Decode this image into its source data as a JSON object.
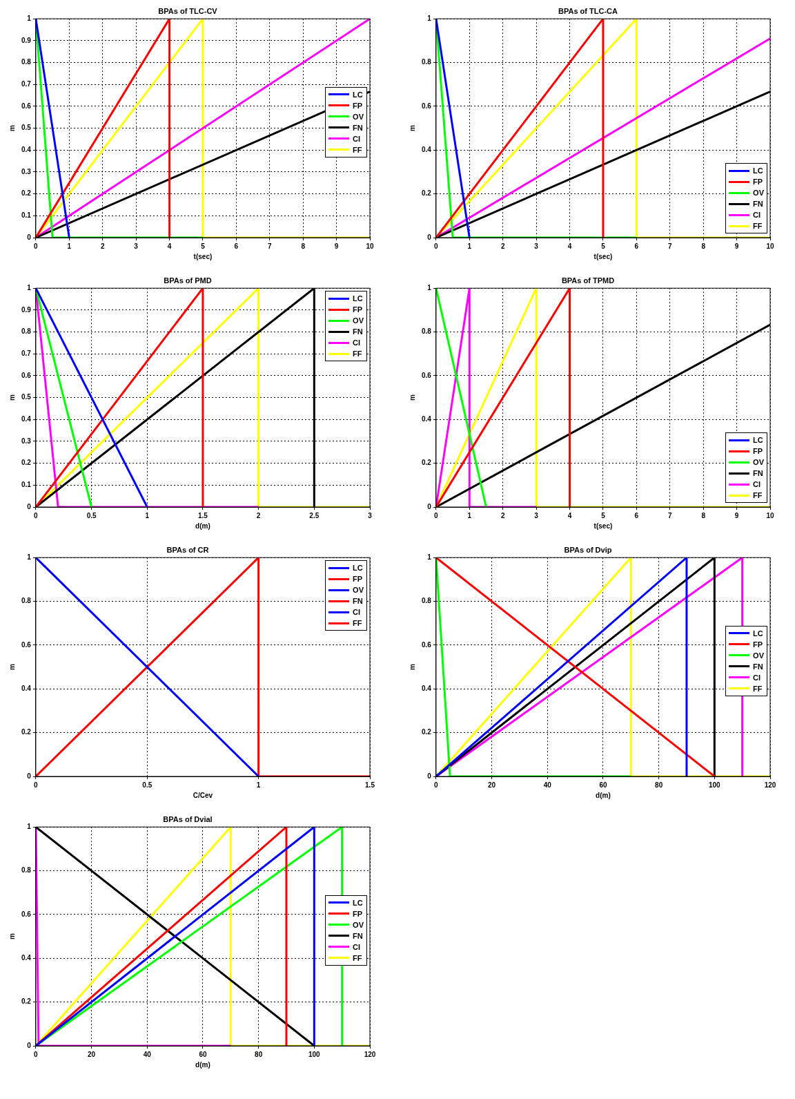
{
  "chart_data": [
    {
      "type": "line",
      "title": "BPAs of TLC-CV",
      "xlabel": "t(sec)",
      "ylabel": "m",
      "xlim": [
        0,
        10
      ],
      "xticks": [
        0,
        1,
        2,
        3,
        4,
        5,
        6,
        7,
        8,
        9,
        10
      ],
      "ylim": [
        0,
        1
      ],
      "yticks": [
        0,
        0.1,
        0.2,
        0.3,
        0.4,
        0.5,
        0.6,
        0.7,
        0.8,
        0.9,
        1
      ],
      "grid": true,
      "legend": "right",
      "series": [
        {
          "name": "LC",
          "color": "#0000ff",
          "x": [
            0,
            1
          ],
          "values": [
            1,
            0
          ]
        },
        {
          "name": "FP",
          "color": "#ff0000",
          "x": [
            0,
            4,
            4
          ],
          "values": [
            0,
            1,
            0
          ]
        },
        {
          "name": "OV",
          "color": "#00ff00",
          "x": [
            0,
            0.5,
            5
          ],
          "values": [
            1,
            0,
            0
          ]
        },
        {
          "name": "FN",
          "color": "#000000",
          "x": [
            0,
            10
          ],
          "values": [
            0,
            0.667
          ]
        },
        {
          "name": "CI",
          "color": "#ff00ff",
          "x": [
            0,
            10
          ],
          "values": [
            0,
            1
          ]
        },
        {
          "name": "FF",
          "color": "#ffff00",
          "x": [
            0,
            5,
            5,
            10
          ],
          "values": [
            0,
            1,
            0,
            0
          ]
        }
      ]
    },
    {
      "type": "line",
      "title": "BPAs of TLC-CA",
      "xlabel": "t(sec)",
      "ylabel": "m",
      "xlim": [
        0,
        10
      ],
      "xticks": [
        0,
        1,
        2,
        3,
        4,
        5,
        6,
        7,
        8,
        9,
        10
      ],
      "ylim": [
        0,
        1
      ],
      "yticks": [
        0,
        0.2,
        0.4,
        0.6,
        0.8,
        1
      ],
      "grid": true,
      "legend": "bottom right",
      "series": [
        {
          "name": "LC",
          "color": "#0000ff",
          "x": [
            0,
            1
          ],
          "values": [
            1,
            0
          ]
        },
        {
          "name": "FP",
          "color": "#ff0000",
          "x": [
            0,
            5,
            5
          ],
          "values": [
            0,
            1,
            0
          ]
        },
        {
          "name": "OV",
          "color": "#00ff00",
          "x": [
            0,
            0.5,
            6
          ],
          "values": [
            1,
            0,
            0
          ]
        },
        {
          "name": "FN",
          "color": "#000000",
          "x": [
            0,
            10
          ],
          "values": [
            0,
            0.667
          ]
        },
        {
          "name": "CI",
          "color": "#ff00ff",
          "x": [
            0,
            10
          ],
          "values": [
            0,
            0.91
          ]
        },
        {
          "name": "FF",
          "color": "#ffff00",
          "x": [
            0,
            6,
            6,
            10
          ],
          "values": [
            0,
            1,
            0,
            0
          ]
        }
      ]
    },
    {
      "type": "line",
      "title": "BPAs of PMD",
      "xlabel": "d(m)",
      "ylabel": "m",
      "xlim": [
        0,
        3
      ],
      "xticks": [
        0,
        0.5,
        1,
        1.5,
        2,
        2.5,
        3
      ],
      "ylim": [
        0,
        1
      ],
      "yticks": [
        0,
        0.1,
        0.2,
        0.3,
        0.4,
        0.5,
        0.6,
        0.7,
        0.8,
        0.9,
        1
      ],
      "grid": true,
      "legend": "top right",
      "series": [
        {
          "name": "LC",
          "color": "#0000ff",
          "x": [
            0,
            1
          ],
          "values": [
            1,
            0
          ]
        },
        {
          "name": "FP",
          "color": "#ff0000",
          "x": [
            0,
            1.5,
            1.5
          ],
          "values": [
            0,
            1,
            0
          ]
        },
        {
          "name": "OV",
          "color": "#00ff00",
          "x": [
            0,
            0.5
          ],
          "values": [
            1,
            0
          ]
        },
        {
          "name": "FN",
          "color": "#000000",
          "x": [
            0,
            2.5,
            2.5
          ],
          "values": [
            0,
            1,
            0
          ]
        },
        {
          "name": "CI",
          "color": "#ff00ff",
          "x": [
            0,
            0.2,
            2
          ],
          "values": [
            1,
            0,
            0
          ]
        },
        {
          "name": "FF",
          "color": "#ffff00",
          "x": [
            0,
            2,
            2,
            3
          ],
          "values": [
            0,
            1,
            0,
            0
          ]
        }
      ]
    },
    {
      "type": "line",
      "title": "BPAs of TPMD",
      "xlabel": "t(sec)",
      "ylabel": "m",
      "xlim": [
        0,
        10
      ],
      "xticks": [
        0,
        1,
        2,
        3,
        4,
        5,
        6,
        7,
        8,
        9,
        10
      ],
      "ylim": [
        0,
        1
      ],
      "yticks": [
        0,
        0.2,
        0.4,
        0.6,
        0.8,
        1
      ],
      "grid": true,
      "legend": "bottom right",
      "series": [
        {
          "name": "LC",
          "color": "#0000ff"
        },
        {
          "name": "FP",
          "color": "#ff0000",
          "x": [
            0,
            4,
            4
          ],
          "values": [
            0,
            1,
            0
          ]
        },
        {
          "name": "OV",
          "color": "#00ff00",
          "x": [
            0,
            1.5
          ],
          "values": [
            1,
            0
          ]
        },
        {
          "name": "FN",
          "color": "#000000",
          "x": [
            0,
            10
          ],
          "values": [
            0,
            0.833
          ]
        },
        {
          "name": "CI",
          "color": "#ff00ff",
          "x": [
            0,
            1,
            1,
            3
          ],
          "values": [
            0,
            1,
            0,
            0
          ]
        },
        {
          "name": "FF",
          "color": "#ffff00",
          "x": [
            0,
            3,
            3,
            10
          ],
          "values": [
            0,
            1,
            0,
            0
          ]
        }
      ]
    },
    {
      "type": "line",
      "title": "BPAs of CR",
      "xlabel": "C/Cev",
      "ylabel": "m",
      "xlim": [
        0,
        1.5
      ],
      "xticks": [
        0,
        0.5,
        1,
        1.5
      ],
      "ylim": [
        0,
        1
      ],
      "yticks": [
        0,
        0.2,
        0.4,
        0.6,
        0.8,
        1
      ],
      "grid": true,
      "legend": "top right",
      "series": [
        {
          "name": "LC",
          "color": "#0000ff"
        },
        {
          "name": "FP",
          "color": "#ff0000"
        },
        {
          "name": "OV",
          "color": "#0000ff"
        },
        {
          "name": "FN",
          "color": "#ff0000"
        },
        {
          "name": "CI",
          "color": "#0000ff",
          "x": [
            0,
            1
          ],
          "values": [
            1,
            0
          ]
        },
        {
          "name": "FF",
          "color": "#ff0000",
          "x": [
            0,
            1,
            1,
            1.5
          ],
          "values": [
            0,
            1,
            0,
            0
          ]
        }
      ]
    },
    {
      "type": "line",
      "title": "BPAs of Dvip",
      "xlabel": "d(m)",
      "ylabel": "m",
      "xlim": [
        0,
        120
      ],
      "xticks": [
        0,
        20,
        40,
        60,
        80,
        100,
        120
      ],
      "ylim": [
        0,
        1
      ],
      "yticks": [
        0,
        0.2,
        0.4,
        0.6,
        0.8,
        1
      ],
      "grid": true,
      "legend": "right",
      "series": [
        {
          "name": "LC",
          "color": "#0000ff",
          "x": [
            0,
            90,
            90
          ],
          "values": [
            0,
            1,
            0
          ]
        },
        {
          "name": "FP",
          "color": "#ff0000",
          "x": [
            0,
            100
          ],
          "values": [
            1,
            0
          ]
        },
        {
          "name": "OV",
          "color": "#00ff00",
          "x": [
            0,
            5,
            70
          ],
          "values": [
            1,
            0,
            0
          ]
        },
        {
          "name": "FN",
          "color": "#000000",
          "x": [
            0,
            100,
            100
          ],
          "values": [
            0,
            1,
            0
          ]
        },
        {
          "name": "CI",
          "color": "#ff00ff",
          "x": [
            0,
            110,
            110
          ],
          "values": [
            0,
            1,
            0
          ]
        },
        {
          "name": "FF",
          "color": "#ffff00",
          "x": [
            0,
            70,
            70,
            120
          ],
          "values": [
            0,
            1,
            0,
            0
          ]
        }
      ]
    },
    {
      "type": "line",
      "title": "BPAs of Dvial",
      "xlabel": "d(m)",
      "ylabel": "m",
      "xlim": [
        0,
        120
      ],
      "xticks": [
        0,
        20,
        40,
        60,
        80,
        100,
        120
      ],
      "ylim": [
        0,
        1
      ],
      "yticks": [
        0,
        0.2,
        0.4,
        0.6,
        0.8,
        1
      ],
      "grid": true,
      "legend": "right",
      "series": [
        {
          "name": "LC",
          "color": "#0000ff",
          "x": [
            0,
            100,
            100
          ],
          "values": [
            0,
            1,
            0
          ]
        },
        {
          "name": "FP",
          "color": "#ff0000",
          "x": [
            0,
            90,
            90
          ],
          "values": [
            0,
            1,
            0
          ]
        },
        {
          "name": "OV",
          "color": "#00ff00",
          "x": [
            0,
            110,
            110
          ],
          "values": [
            0,
            1,
            0
          ]
        },
        {
          "name": "FN",
          "color": "#000000",
          "x": [
            0,
            100
          ],
          "values": [
            1,
            0
          ]
        },
        {
          "name": "CI",
          "color": "#ff00ff",
          "x": [
            0,
            1,
            70
          ],
          "values": [
            1,
            0,
            0
          ]
        },
        {
          "name": "FF",
          "color": "#ffff00",
          "x": [
            0,
            70,
            70,
            120
          ],
          "values": [
            0,
            1,
            0,
            0
          ]
        }
      ]
    }
  ]
}
